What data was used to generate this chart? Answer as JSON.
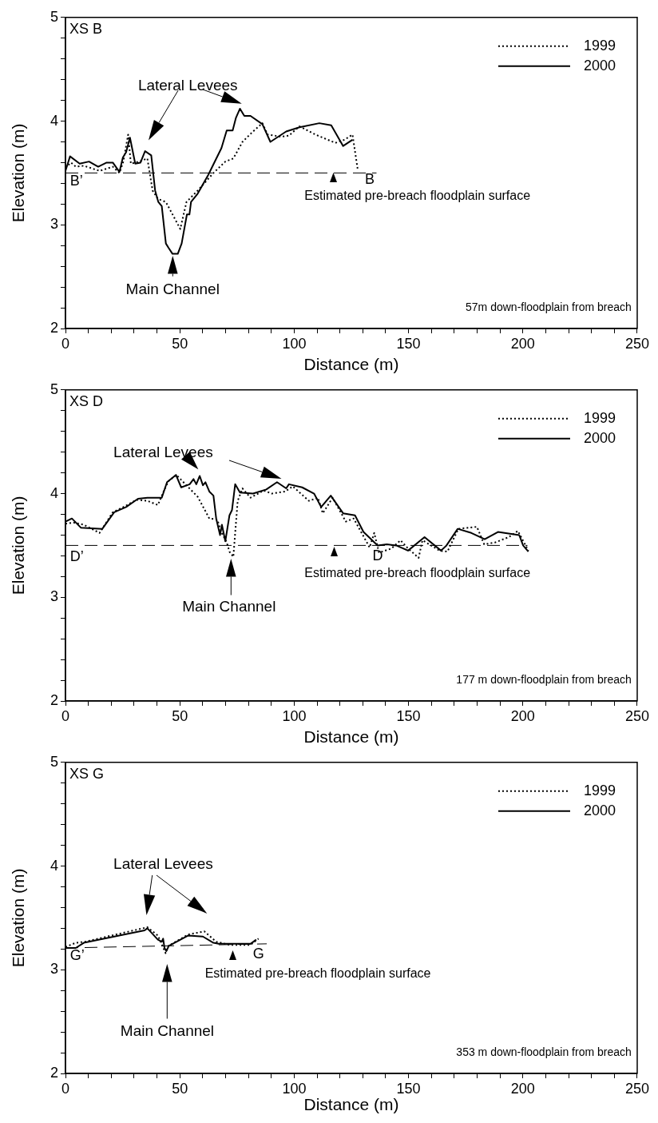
{
  "chart_data": [
    {
      "type": "line",
      "title": "XS B",
      "xlabel": "Distance (m)",
      "ylabel": "Elevation (m)",
      "xlim": [
        0,
        250
      ],
      "ylim": [
        2,
        5
      ],
      "xticks": [
        0,
        {
          "value": 10,
          "label": null
        },
        {
          "value": 20,
          "label": null
        },
        {
          "value": 30,
          "label": null
        },
        {
          "value": 40,
          "label": null
        },
        50,
        {
          "value": 60,
          "label": null
        },
        {
          "value": 70,
          "label": null
        },
        {
          "value": 80,
          "label": null
        },
        {
          "value": 90,
          "label": null
        },
        100,
        {
          "value": 110,
          "label": null
        },
        {
          "value": 120,
          "label": null
        },
        {
          "value": 130,
          "label": null
        },
        {
          "value": 140,
          "label": null
        },
        150,
        {
          "value": 160,
          "label": null
        },
        {
          "value": 170,
          "label": null
        },
        {
          "value": 180,
          "label": null
        },
        {
          "value": 190,
          "label": null
        },
        200,
        {
          "value": 210,
          "label": null
        },
        {
          "value": 220,
          "label": null
        },
        {
          "value": 230,
          "label": null
        },
        {
          "value": 240,
          "label": null
        },
        250
      ],
      "yticks": [
        2,
        {
          "value": 2.2,
          "label": null
        },
        {
          "value": 2.4,
          "label": null
        },
        {
          "value": 2.6,
          "label": null
        },
        {
          "value": 2.8,
          "label": null
        },
        3,
        {
          "value": 3.2,
          "label": null
        },
        {
          "value": 3.4,
          "label": null
        },
        {
          "value": 3.6,
          "label": null
        },
        {
          "value": 3.8,
          "label": null
        },
        4,
        {
          "value": 4.2,
          "label": null
        },
        {
          "value": 4.4,
          "label": null
        },
        {
          "value": 4.6,
          "label": null
        },
        {
          "value": 4.8,
          "label": null
        },
        5
      ],
      "grid": false,
      "legend": "top right",
      "marker": "none",
      "series": [
        {
          "name": "1999",
          "color": "#000000",
          "line_style": "dotted",
          "x": [
            0,
            2.4,
            4.5,
            8,
            14.9,
            20.7,
            23.6,
            25.3,
            27.4,
            28.6,
            32.3,
            35.8,
            38.1,
            40.4,
            43.9,
            50.2,
            52.9,
            57.8,
            64.7,
            69.9,
            73.4,
            77.4,
            82,
            86.1,
            88.4,
            94.2,
            97.7,
            102.3,
            109.3,
            118,
            122,
            125.5,
            127.8
          ],
          "values": [
            3.55,
            3.6,
            3.56,
            3.57,
            3.52,
            3.56,
            3.5,
            3.61,
            3.87,
            3.59,
            3.61,
            3.64,
            3.33,
            3.25,
            3.22,
            2.96,
            3.22,
            3.33,
            3.5,
            3.61,
            3.64,
            3.8,
            3.9,
            3.98,
            3.87,
            3.85,
            3.86,
            3.95,
            3.87,
            3.79,
            3.82,
            3.87,
            3.53
          ]
        },
        {
          "name": "2000",
          "color": "#000000",
          "line_style": "solid",
          "x": [
            0,
            2,
            6.2,
            10.3,
            14.3,
            18,
            20.7,
            23.6,
            25.1,
            26.5,
            28.2,
            30.5,
            32.8,
            34.8,
            37.5,
            39.2,
            40.6,
            42.1,
            43.9,
            45,
            46.8,
            49.1,
            50.8,
            53.1,
            54.2,
            54.9,
            57.8,
            62.4,
            68.2,
            70.5,
            73.1,
            74.5,
            76.3,
            78.2,
            80.9,
            86.1,
            89.6,
            96.5,
            102.3,
            111,
            116.2,
            121.4,
            125.5
          ],
          "values": [
            3.52,
            3.66,
            3.59,
            3.61,
            3.56,
            3.6,
            3.6,
            3.51,
            3.65,
            3.7,
            3.84,
            3.59,
            3.6,
            3.71,
            3.67,
            3.33,
            3.22,
            3.18,
            2.82,
            2.78,
            2.72,
            2.72,
            2.82,
            3.1,
            3.1,
            3.22,
            3.3,
            3.48,
            3.74,
            3.91,
            3.91,
            4.03,
            4.12,
            4.05,
            4.05,
            3.97,
            3.8,
            3.9,
            3.94,
            3.98,
            3.96,
            3.76,
            3.82
          ]
        },
        {
          "type": "line",
          "color": "#000000",
          "line_style": "dashed",
          "x": [
            0,
            136
          ],
          "values": [
            3.5,
            3.5
          ]
        }
      ],
      "annotations": [
        "Lateral Levees",
        "Main Channel",
        "Estimated pre-breach floodplain surface",
        "57m down-floodplain from breach",
        "B’",
        "B"
      ]
    },
    {
      "type": "line",
      "title": "XS D",
      "xlabel": "Distance (m)",
      "ylabel": "Elevation (m)",
      "xlim": [
        0,
        250
      ],
      "ylim": [
        2,
        5
      ],
      "xticks": [
        0,
        {
          "value": 10,
          "label": null
        },
        {
          "value": 20,
          "label": null
        },
        {
          "value": 30,
          "label": null
        },
        {
          "value": 40,
          "label": null
        },
        50,
        {
          "value": 60,
          "label": null
        },
        {
          "value": 70,
          "label": null
        },
        {
          "value": 80,
          "label": null
        },
        {
          "value": 90,
          "label": null
        },
        100,
        {
          "value": 110,
          "label": null
        },
        {
          "value": 120,
          "label": null
        },
        {
          "value": 130,
          "label": null
        },
        {
          "value": 140,
          "label": null
        },
        150,
        {
          "value": 160,
          "label": null
        },
        {
          "value": 170,
          "label": null
        },
        {
          "value": 180,
          "label": null
        },
        {
          "value": 190,
          "label": null
        },
        200,
        {
          "value": 210,
          "label": null
        },
        {
          "value": 220,
          "label": null
        },
        {
          "value": 230,
          "label": null
        },
        {
          "value": 240,
          "label": null
        },
        250
      ],
      "yticks": [
        2,
        {
          "value": 2.2,
          "label": null
        },
        {
          "value": 2.4,
          "label": null
        },
        {
          "value": 2.6,
          "label": null
        },
        {
          "value": 2.8,
          "label": null
        },
        3,
        {
          "value": 3.2,
          "label": null
        },
        {
          "value": 3.4,
          "label": null
        },
        {
          "value": 3.6,
          "label": null
        },
        {
          "value": 3.8,
          "label": null
        },
        4,
        {
          "value": 4.2,
          "label": null
        },
        {
          "value": 4.4,
          "label": null
        },
        {
          "value": 4.6,
          "label": null
        },
        {
          "value": 4.8,
          "label": null
        },
        5
      ],
      "grid": false,
      "legend": "top right",
      "marker": "none",
      "series": [
        {
          "name": "1999",
          "color": "#000000",
          "line_style": "dotted",
          "x": [
            0,
            3.5,
            8,
            14.9,
            20.7,
            25.3,
            31.1,
            35.8,
            40.4,
            42.7,
            45,
            48.5,
            52,
            57.8,
            62.9,
            66.4,
            68.1,
            70.5,
            71.7,
            73.4,
            75.3,
            77.4,
            80.9,
            86.7,
            90.2,
            96,
            99.4,
            106.4,
            110.4,
            112.5,
            116.8,
            122.6,
            126,
            133,
            135,
            137.1,
            142.5,
            146.5,
            149.8,
            154.4,
            156.1,
            163.6,
            167,
            171.8,
            179.9,
            183.1,
            188,
            193.8,
            197.8,
            202.4
          ],
          "values": [
            3.71,
            3.72,
            3.7,
            3.62,
            3.82,
            3.87,
            3.94,
            3.93,
            3.89,
            4.01,
            4.12,
            4.18,
            4.1,
            3.97,
            3.76,
            3.75,
            3.63,
            3.53,
            3.44,
            3.39,
            3.93,
            4.05,
            3.96,
            4.03,
            4.0,
            4.02,
            4.07,
            3.93,
            3.96,
            3.81,
            3.96,
            3.73,
            3.76,
            3.48,
            3.62,
            3.43,
            3.47,
            3.55,
            3.47,
            3.38,
            3.55,
            3.45,
            3.44,
            3.66,
            3.68,
            3.51,
            3.53,
            3.58,
            3.64,
            3.45
          ]
        },
        {
          "name": "2000",
          "color": "#000000",
          "line_style": "solid",
          "x": [
            0,
            2.8,
            6.8,
            16.1,
            21.3,
            26.5,
            31.7,
            35.8,
            42.1,
            44.4,
            48.3,
            50.6,
            54.3,
            56,
            57.2,
            58.7,
            60.1,
            61.2,
            62.9,
            64.7,
            65.9,
            67.6,
            68.4,
            69.9,
            71.7,
            72.8,
            74.2,
            76.3,
            82,
            87.8,
            92.5,
            96.5,
            97.7,
            103.5,
            108.7,
            111.8,
            116,
            121.4,
            126.6,
            130.3,
            136.5,
            140.5,
            144.6,
            149.8,
            157,
            164.2,
            166.6,
            171.5,
            177.5,
            183.3,
            189.1,
            198.4,
            200.1,
            202.4
          ],
          "values": [
            3.73,
            3.76,
            3.67,
            3.66,
            3.82,
            3.87,
            3.95,
            3.96,
            3.96,
            4.11,
            4.18,
            4.06,
            4.09,
            4.14,
            4.09,
            4.17,
            4.08,
            4.11,
            4.02,
            3.98,
            3.76,
            3.6,
            3.7,
            3.54,
            3.79,
            3.84,
            4.09,
            4.01,
            4.0,
            4.04,
            4.11,
            4.05,
            4.09,
            4.06,
            4.0,
            3.87,
            3.98,
            3.81,
            3.79,
            3.63,
            3.5,
            3.51,
            3.5,
            3.45,
            3.58,
            3.45,
            3.5,
            3.66,
            3.62,
            3.56,
            3.63,
            3.6,
            3.5,
            3.44
          ]
        },
        {
          "type": "line",
          "color": "#000000",
          "line_style": "dashed",
          "x": [
            0,
            202
          ],
          "values": [
            3.5,
            3.5
          ]
        }
      ],
      "annotations": [
        "Lateral Levees",
        "Main Channel",
        "Estimated pre-breach floodplain surface",
        "177 m down-floodplain from breach",
        "D’",
        "D"
      ]
    },
    {
      "type": "line",
      "title": "XS G",
      "xlabel": "Distance (m)",
      "ylabel": "Elevation (m)",
      "xlim": [
        0,
        250
      ],
      "ylim": [
        2,
        5
      ],
      "xticks": [
        0,
        {
          "value": 10,
          "label": null
        },
        {
          "value": 20,
          "label": null
        },
        {
          "value": 30,
          "label": null
        },
        {
          "value": 40,
          "label": null
        },
        50,
        {
          "value": 60,
          "label": null
        },
        {
          "value": 70,
          "label": null
        },
        {
          "value": 80,
          "label": null
        },
        {
          "value": 90,
          "label": null
        },
        100,
        {
          "value": 110,
          "label": null
        },
        {
          "value": 120,
          "label": null
        },
        {
          "value": 130,
          "label": null
        },
        {
          "value": 140,
          "label": null
        },
        150,
        {
          "value": 160,
          "label": null
        },
        {
          "value": 170,
          "label": null
        },
        {
          "value": 180,
          "label": null
        },
        {
          "value": 190,
          "label": null
        },
        200,
        {
          "value": 210,
          "label": null
        },
        {
          "value": 220,
          "label": null
        },
        {
          "value": 230,
          "label": null
        },
        {
          "value": 240,
          "label": null
        },
        250
      ],
      "yticks": [
        2,
        {
          "value": 2.2,
          "label": null
        },
        {
          "value": 2.4,
          "label": null
        },
        {
          "value": 2.6,
          "label": null
        },
        {
          "value": 2.8,
          "label": null
        },
        3,
        {
          "value": 3.2,
          "label": null
        },
        {
          "value": 3.4,
          "label": null
        },
        {
          "value": 3.6,
          "label": null
        },
        {
          "value": 3.8,
          "label": null
        },
        4,
        {
          "value": 4.2,
          "label": null
        },
        {
          "value": 4.4,
          "label": null
        },
        {
          "value": 4.6,
          "label": null
        },
        {
          "value": 4.8,
          "label": null
        },
        5
      ],
      "grid": false,
      "legend": "top right",
      "marker": "none",
      "series": [
        {
          "name": "1999",
          "color": "#000000",
          "line_style": "dotted",
          "x": [
            0,
            4.5,
            8.5,
            35.8,
            40.4,
            43.8,
            45,
            53.7,
            60.7,
            65.9,
            71.7,
            80.9,
            84.4
          ],
          "values": [
            3.22,
            3.26,
            3.27,
            3.41,
            3.33,
            3.16,
            3.23,
            3.34,
            3.37,
            3.27,
            3.24,
            3.24,
            3.3
          ]
        },
        {
          "name": "2000",
          "color": "#000000",
          "line_style": "solid",
          "x": [
            0,
            4.5,
            8,
            34.6,
            35.8,
            40.4,
            42.1,
            42.7,
            43.3,
            44.1,
            45.2,
            53.7,
            60.1,
            64.7,
            67,
            80.9,
            83.4
          ],
          "values": [
            3.21,
            3.21,
            3.26,
            3.38,
            3.4,
            3.29,
            3.27,
            3.3,
            3.21,
            3.18,
            3.23,
            3.33,
            3.32,
            3.26,
            3.25,
            3.25,
            3.29
          ]
        },
        {
          "type": "line",
          "color": "#000000",
          "line_style": "dashed",
          "x": [
            0,
            88
          ],
          "values": [
            3.21,
            3.25
          ]
        }
      ],
      "annotations": [
        "Lateral Levees",
        "Main Channel",
        "Estimated pre-breach floodplain surface",
        "353 m down-floodplain from breach",
        "G’",
        "G"
      ]
    }
  ]
}
